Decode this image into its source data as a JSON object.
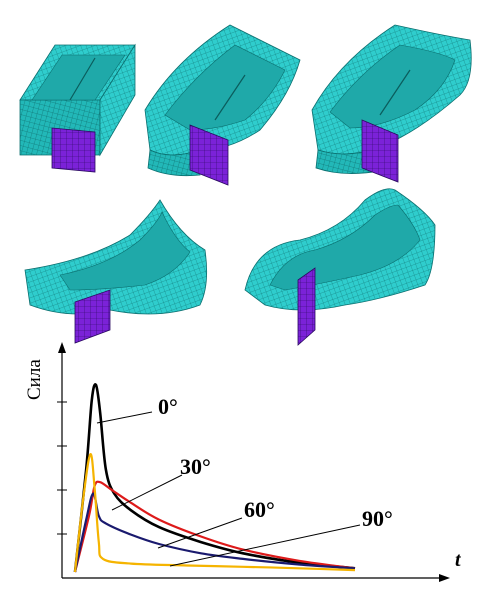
{
  "chart_data": {
    "type": "line",
    "ylabel": "Сила",
    "xlabel": "t",
    "yticks_count": 4,
    "series": [
      {
        "name": "0°",
        "color": "#000000",
        "points": [
          [
            0.0,
            0
          ],
          [
            0.04,
            0.55
          ],
          [
            0.06,
            0.92
          ],
          [
            0.075,
            1.0
          ],
          [
            0.09,
            0.85
          ],
          [
            0.11,
            0.55
          ],
          [
            0.14,
            0.42
          ],
          [
            0.2,
            0.33
          ],
          [
            0.3,
            0.24
          ],
          [
            0.45,
            0.16
          ],
          [
            0.6,
            0.1
          ],
          [
            0.8,
            0.05
          ],
          [
            1.0,
            0.02
          ]
        ]
      },
      {
        "name": "30°",
        "color": "#dd1a1a",
        "points": [
          [
            0.0,
            0
          ],
          [
            0.05,
            0.3
          ],
          [
            0.07,
            0.46
          ],
          [
            0.09,
            0.48
          ],
          [
            0.13,
            0.44
          ],
          [
            0.2,
            0.37
          ],
          [
            0.3,
            0.28
          ],
          [
            0.45,
            0.19
          ],
          [
            0.6,
            0.12
          ],
          [
            0.8,
            0.06
          ],
          [
            1.0,
            0.02
          ]
        ]
      },
      {
        "name": "60°",
        "color": "#1a1a6e",
        "points": [
          [
            0.0,
            0
          ],
          [
            0.04,
            0.28
          ],
          [
            0.065,
            0.42
          ],
          [
            0.085,
            0.3
          ],
          [
            0.11,
            0.26
          ],
          [
            0.2,
            0.2
          ],
          [
            0.3,
            0.15
          ],
          [
            0.45,
            0.1
          ],
          [
            0.6,
            0.07
          ],
          [
            0.8,
            0.04
          ],
          [
            1.0,
            0.02
          ]
        ]
      },
      {
        "name": "90°",
        "color": "#f5b400",
        "points": [
          [
            0.0,
            0
          ],
          [
            0.03,
            0.4
          ],
          [
            0.055,
            0.63
          ],
          [
            0.07,
            0.45
          ],
          [
            0.085,
            0.16
          ],
          [
            0.1,
            0.07
          ],
          [
            0.2,
            0.045
          ],
          [
            0.4,
            0.035
          ],
          [
            0.6,
            0.028
          ],
          [
            0.8,
            0.02
          ],
          [
            1.0,
            0.01
          ]
        ]
      }
    ]
  },
  "colors": {
    "mesh": "#29cccc",
    "mesh_line": "#0a6f6f",
    "plate": "#7a1fd6",
    "plate_line": "#2a0a60"
  }
}
